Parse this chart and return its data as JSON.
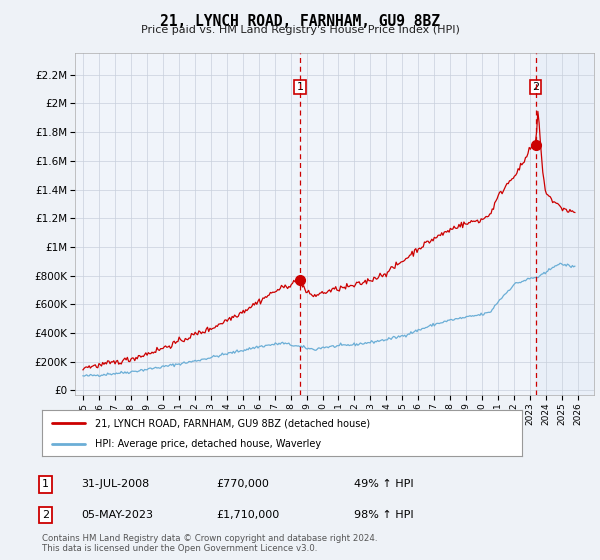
{
  "title": "21, LYNCH ROAD, FARNHAM, GU9 8BZ",
  "subtitle": "Price paid vs. HM Land Registry's House Price Index (HPI)",
  "yticks": [
    0,
    200000,
    400000,
    600000,
    800000,
    1000000,
    1200000,
    1400000,
    1600000,
    1800000,
    2000000,
    2200000
  ],
  "ytick_labels": [
    "£0",
    "£200K",
    "£400K",
    "£600K",
    "£800K",
    "£1M",
    "£1.2M",
    "£1.4M",
    "£1.6M",
    "£1.8M",
    "£2M",
    "£2.2M"
  ],
  "ylim": [
    -30000,
    2350000
  ],
  "xmin_year": 1994.5,
  "xmax_year": 2026.5,
  "xtick_years": [
    1995,
    1996,
    1997,
    1998,
    1999,
    2000,
    2001,
    2002,
    2003,
    2004,
    2005,
    2006,
    2007,
    2008,
    2009,
    2010,
    2011,
    2012,
    2013,
    2014,
    2015,
    2016,
    2017,
    2018,
    2019,
    2020,
    2021,
    2022,
    2023,
    2024,
    2025,
    2026
  ],
  "hpi_color": "#6baed6",
  "price_color": "#cc0000",
  "sale1_date": 2008.58,
  "sale1_price": 770000,
  "sale2_date": 2023.34,
  "sale2_price": 1710000,
  "vline_color": "#cc0000",
  "legend_label1": "21, LYNCH ROAD, FARNHAM, GU9 8BZ (detached house)",
  "legend_label2": "HPI: Average price, detached house, Waverley",
  "table_row1": [
    "1",
    "31-JUL-2008",
    "£770,000",
    "49% ↑ HPI"
  ],
  "table_row2": [
    "2",
    "05-MAY-2023",
    "£1,710,000",
    "98% ↑ HPI"
  ],
  "footer": "Contains HM Land Registry data © Crown copyright and database right 2024.\nThis data is licensed under the Open Government Licence v3.0.",
  "bg_color": "#eef2f7",
  "plot_bg": "#f0f4fa",
  "grid_color": "#c8d0dc",
  "shade_color": "#dce8f5"
}
